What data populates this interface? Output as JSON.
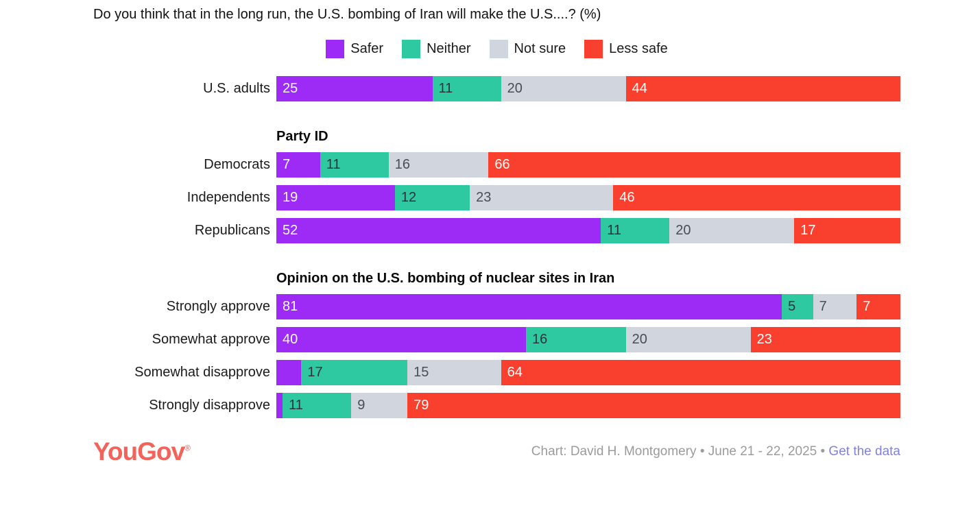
{
  "chart_data": {
    "type": "bar",
    "stacked": true,
    "orientation": "horizontal",
    "unit": "%",
    "xlim": [
      0,
      100
    ],
    "grid": false,
    "legend_position": "top-center",
    "title": "Do you think that in the long run, the U.S. bombing of Iran will make the U.S....? (%)",
    "min_label_value": 5,
    "series_meta": [
      {
        "name": "Safer",
        "color": "#9D2BF5",
        "text_color": "#ffffff"
      },
      {
        "name": "Neither",
        "color": "#2EC8A1",
        "text_color": "#2f3237"
      },
      {
        "name": "Not sure",
        "color": "#D1D5DE",
        "text_color": "#4a4d53"
      },
      {
        "name": "Less safe",
        "color": "#F9402E",
        "text_color": "#ffffff"
      }
    ],
    "groups": [
      {
        "header": null,
        "rows": [
          {
            "label": "U.S. adults",
            "values": [
              25,
              11,
              20,
              44
            ]
          }
        ]
      },
      {
        "header": "Party ID",
        "rows": [
          {
            "label": "Democrats",
            "values": [
              7,
              11,
              16,
              66
            ]
          },
          {
            "label": "Independents",
            "values": [
              19,
              12,
              23,
              46
            ]
          },
          {
            "label": "Republicans",
            "values": [
              52,
              11,
              20,
              17
            ]
          }
        ]
      },
      {
        "header": "Opinion on the U.S. bombing of nuclear sites in Iran",
        "rows": [
          {
            "label": "Strongly approve",
            "values": [
              81,
              5,
              7,
              7
            ]
          },
          {
            "label": "Somewhat approve",
            "values": [
              40,
              16,
              20,
              23
            ]
          },
          {
            "label": "Somewhat disapprove",
            "values": [
              4,
              17,
              15,
              64
            ]
          },
          {
            "label": "Strongly disapprove",
            "values": [
              1,
              11,
              9,
              79
            ]
          }
        ]
      }
    ]
  },
  "footer": {
    "logo_text": "YouGov",
    "logo_mark": "®",
    "logo_color": "#F2635A",
    "credit_text": "Chart: David H. Montgomery • June 21 - 22, 2025 • ",
    "credit_color": "#9b9b9b",
    "link_label": "Get the data",
    "link_color": "#8181DF"
  }
}
